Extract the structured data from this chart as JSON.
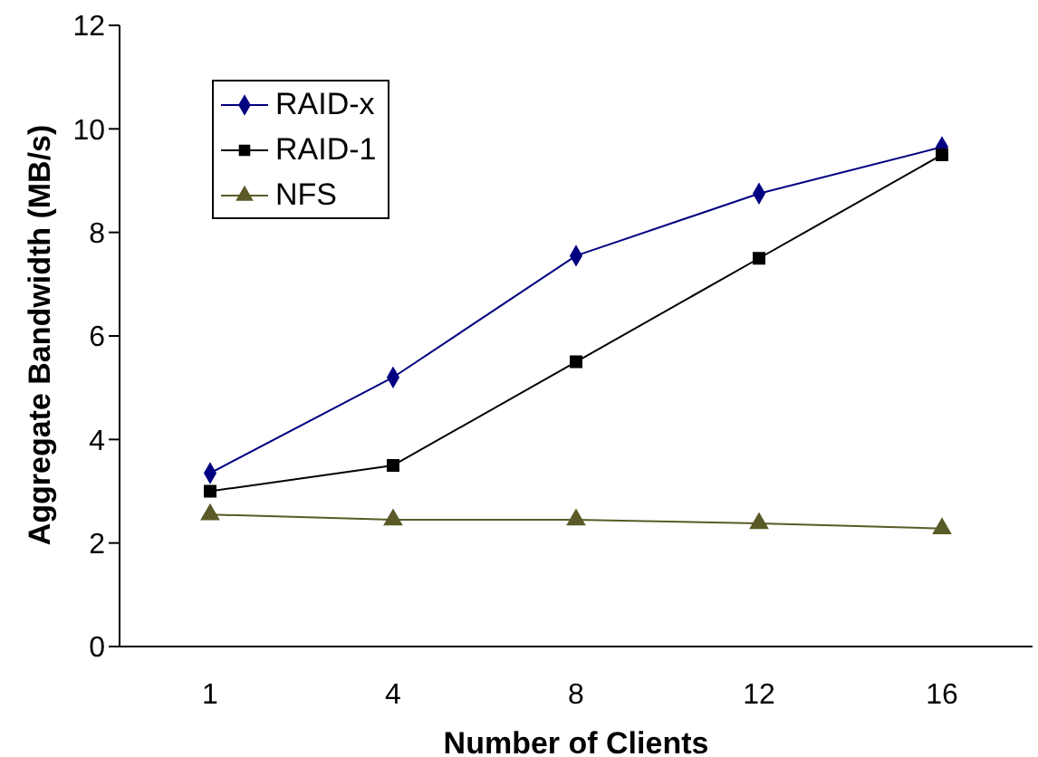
{
  "chart_data": {
    "type": "line",
    "xlabel": "Number of Clients",
    "ylabel": "Aggregate Bandwidth (MB/s)",
    "categories": [
      "1",
      "4",
      "8",
      "12",
      "16"
    ],
    "series": [
      {
        "name": "RAID-x",
        "color": "#000080",
        "marker": "diamond",
        "values": [
          3.35,
          5.2,
          7.55,
          8.75,
          9.65
        ]
      },
      {
        "name": "RAID-1",
        "color": "#000000",
        "marker": "square",
        "values": [
          3.0,
          3.5,
          5.5,
          7.5,
          9.5
        ]
      },
      {
        "name": "NFS",
        "color": "#5a5a28",
        "marker": "triangle",
        "values": [
          2.55,
          2.45,
          2.45,
          2.38,
          2.28
        ]
      }
    ],
    "ylim": [
      0,
      12
    ],
    "yticks": [
      0,
      2,
      4,
      6,
      8,
      10,
      12
    ],
    "grid": false,
    "legend": "top left",
    "line_style": "solid"
  }
}
